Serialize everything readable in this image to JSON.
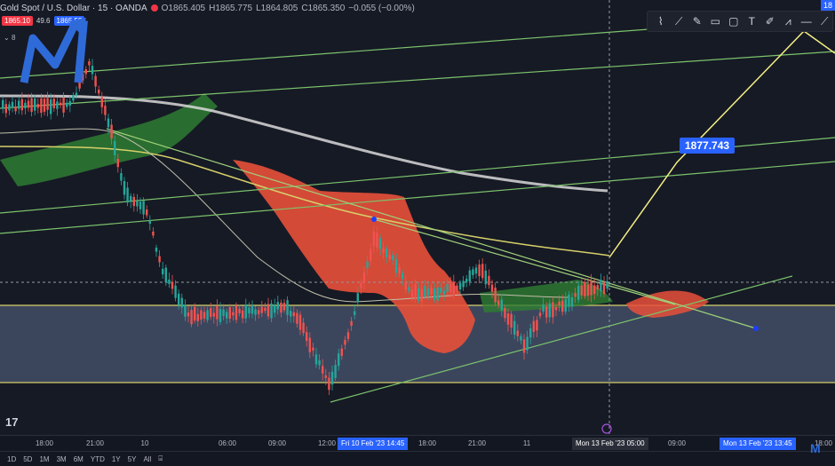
{
  "header": {
    "symbol": "Gold Spot / U.S. Dollar · 15 · OANDA",
    "open": "O1865.405",
    "high": "H1865.775",
    "low": "L1864.805",
    "close": "C1865.350",
    "change": "−0.055 (−0.00%)",
    "sell_price": "1865.10",
    "spread": "49.6",
    "buy_price": "1865.59",
    "indicators_count": "8"
  },
  "top_right_label": "18",
  "price_callout": "1877.743",
  "x_axis": {
    "ticks": [
      "18:00",
      "21:00",
      "10",
      "06:00",
      "09:00",
      "12:00",
      "18:00",
      "21:00",
      "11",
      "09:00",
      "18:00"
    ],
    "highlight_start": "Fri 10 Feb '23",
    "highlight_time": "14:45",
    "crosshair_label": "Mon 13 Feb '23",
    "crosshair_time": "05:00",
    "highlight_end": "Mon 13 Feb '23",
    "highlight_end_time": "13:45"
  },
  "timeframes": [
    "1D",
    "5D",
    "1M",
    "3M",
    "6M",
    "YTD",
    "1Y",
    "5Y",
    "All"
  ],
  "toolbar_icons": [
    "cursor-pen-icon",
    "trend-line-icon",
    "brush-icon",
    "note-icon",
    "rectangle-icon",
    "text-icon",
    "pencil-icon",
    "pattern-icon",
    "horizontal-line-icon",
    "ray-icon"
  ],
  "colors": {
    "background": "#161a25",
    "bull": "#26a69a",
    "bear": "#ef5350",
    "cloud_green": "#2e7d32",
    "cloud_red": "#e8503a",
    "zone": "#4a5a7a",
    "accent": "#2962ff"
  },
  "brand_watermark": "M",
  "tv_logo": "17"
}
